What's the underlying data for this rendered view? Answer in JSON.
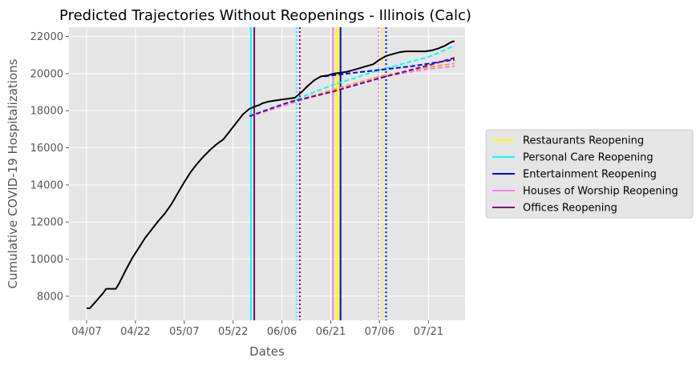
{
  "chart_data": {
    "type": "line",
    "title": "Predicted Trajectories Without Reopenings - Illinois (Calc)",
    "xlabel": "Dates",
    "ylabel": "Cumulative COVID-19 Hospitalizations",
    "x_ticks": [
      {
        "label": "04/07",
        "day": 0
      },
      {
        "label": "04/22",
        "day": 15
      },
      {
        "label": "05/07",
        "day": 30
      },
      {
        "label": "05/22",
        "day": 45
      },
      {
        "label": "06/06",
        "day": 60
      },
      {
        "label": "06/21",
        "day": 75
      },
      {
        "label": "07/06",
        "day": 90
      },
      {
        "label": "07/21",
        "day": 105
      }
    ],
    "xlim_days": [
      -5,
      118
    ],
    "y_ticks": [
      8000,
      10000,
      12000,
      14000,
      16000,
      18000,
      20000,
      22000
    ],
    "ylim": [
      6700,
      22500
    ],
    "grid": true,
    "legend_position": "center-right, outside plot",
    "legend": [
      {
        "label": "Restaurants Reopening",
        "color": "#ffff00"
      },
      {
        "label": "Personal Care Reopening",
        "color": "#00ffff"
      },
      {
        "label": "Entertainment Reopening",
        "color": "#0000ff"
      },
      {
        "label": "Houses of Worship Reopening",
        "color": "#ee82ee"
      },
      {
        "label": "Offices Reopening",
        "color": "#800080"
      }
    ],
    "actual_series": {
      "color": "#000000",
      "days": [
        0,
        1,
        2,
        3,
        4,
        5,
        6,
        7,
        8,
        9,
        10,
        11,
        12,
        14,
        16,
        18,
        20,
        22,
        24,
        26,
        28,
        30,
        32,
        34,
        36,
        38,
        40,
        42,
        44,
        46,
        48,
        50,
        52,
        53,
        54,
        56,
        58,
        60,
        62,
        64,
        66,
        68,
        70,
        72,
        74,
        76,
        78,
        80,
        82,
        84,
        86,
        88,
        90,
        92,
        94,
        96,
        98,
        100,
        102,
        104,
        106,
        108,
        110,
        112,
        113
      ],
      "values": [
        7350,
        7350,
        7550,
        7750,
        7950,
        8150,
        8400,
        8400,
        8400,
        8400,
        8700,
        9050,
        9400,
        10050,
        10600,
        11150,
        11600,
        12050,
        12450,
        12950,
        13550,
        14150,
        14700,
        15150,
        15550,
        15900,
        16200,
        16450,
        16900,
        17350,
        17800,
        18100,
        18250,
        18300,
        18400,
        18500,
        18550,
        18600,
        18650,
        18700,
        19000,
        19350,
        19650,
        19850,
        19900,
        20000,
        20050,
        20100,
        20200,
        20300,
        20400,
        20500,
        20750,
        20950,
        21050,
        21150,
        21200,
        21200,
        21200,
        21200,
        21250,
        21350,
        21500,
        21700,
        21750
      ]
    },
    "predicted_series": [
      {
        "name": "Restaurants Reopening",
        "color": "#ffa500",
        "days": [
          50,
          62,
          75,
          90,
          105,
          113
        ],
        "values": [
          17750,
          18400,
          19100,
          19850,
          20350,
          20550
        ]
      },
      {
        "name": "Personal Care Reopening",
        "color": "#00ffff",
        "days": [
          50,
          62,
          75,
          90,
          105,
          113
        ],
        "values": [
          17750,
          18450,
          19350,
          20200,
          20900,
          21500
        ]
      },
      {
        "name": "Houses of Worship Reopening",
        "color": "#ee82ee",
        "days": [
          50,
          62,
          75,
          90,
          105,
          113
        ],
        "values": [
          17700,
          18350,
          19050,
          19800,
          20250,
          20400
        ]
      },
      {
        "name": "Entertainment Reopening",
        "color": "#0000ff",
        "days": [
          73,
          80,
          90,
          100,
          113
        ],
        "values": [
          19850,
          20000,
          20200,
          20400,
          20750
        ]
      },
      {
        "name": "Offices Reopening",
        "color": "#800080",
        "days": [
          50,
          62,
          75,
          90,
          105,
          113
        ],
        "values": [
          17700,
          18450,
          19000,
          19750,
          20450,
          20850
        ]
      }
    ],
    "reopening_lines": [
      {
        "name": "Personal Care Reopening",
        "color": "#00ffff",
        "day": 50.5,
        "style": "solid"
      },
      {
        "name": "Offices Reopening",
        "color": "#800080",
        "day": 51.5,
        "style": "solid"
      },
      {
        "name": "Personal Care Reopening",
        "color": "#00ffff",
        "day": 64.5,
        "style": "dotted"
      },
      {
        "name": "Offices Reopening",
        "color": "#800080",
        "day": 65.5,
        "style": "dotted"
      },
      {
        "name": "Houses of Worship Reopening",
        "color": "#ee82ee",
        "day": 75.7,
        "style": "solid"
      },
      {
        "name": "Restaurants Reopening",
        "color": "#ffff00",
        "day": 77,
        "style": "solid",
        "width": 4
      },
      {
        "name": "Entertainment Reopening",
        "color": "#0000ff",
        "day": 78,
        "style": "solid"
      },
      {
        "name": "Houses of Worship Reopening",
        "color": "#ee82ee",
        "day": 89.7,
        "style": "dotted"
      },
      {
        "name": "Restaurants Reopening",
        "color": "#ffff00",
        "day": 91,
        "style": "dotted"
      },
      {
        "name": "Entertainment Reopening",
        "color": "#0000ff",
        "day": 92,
        "style": "dotted"
      }
    ]
  }
}
